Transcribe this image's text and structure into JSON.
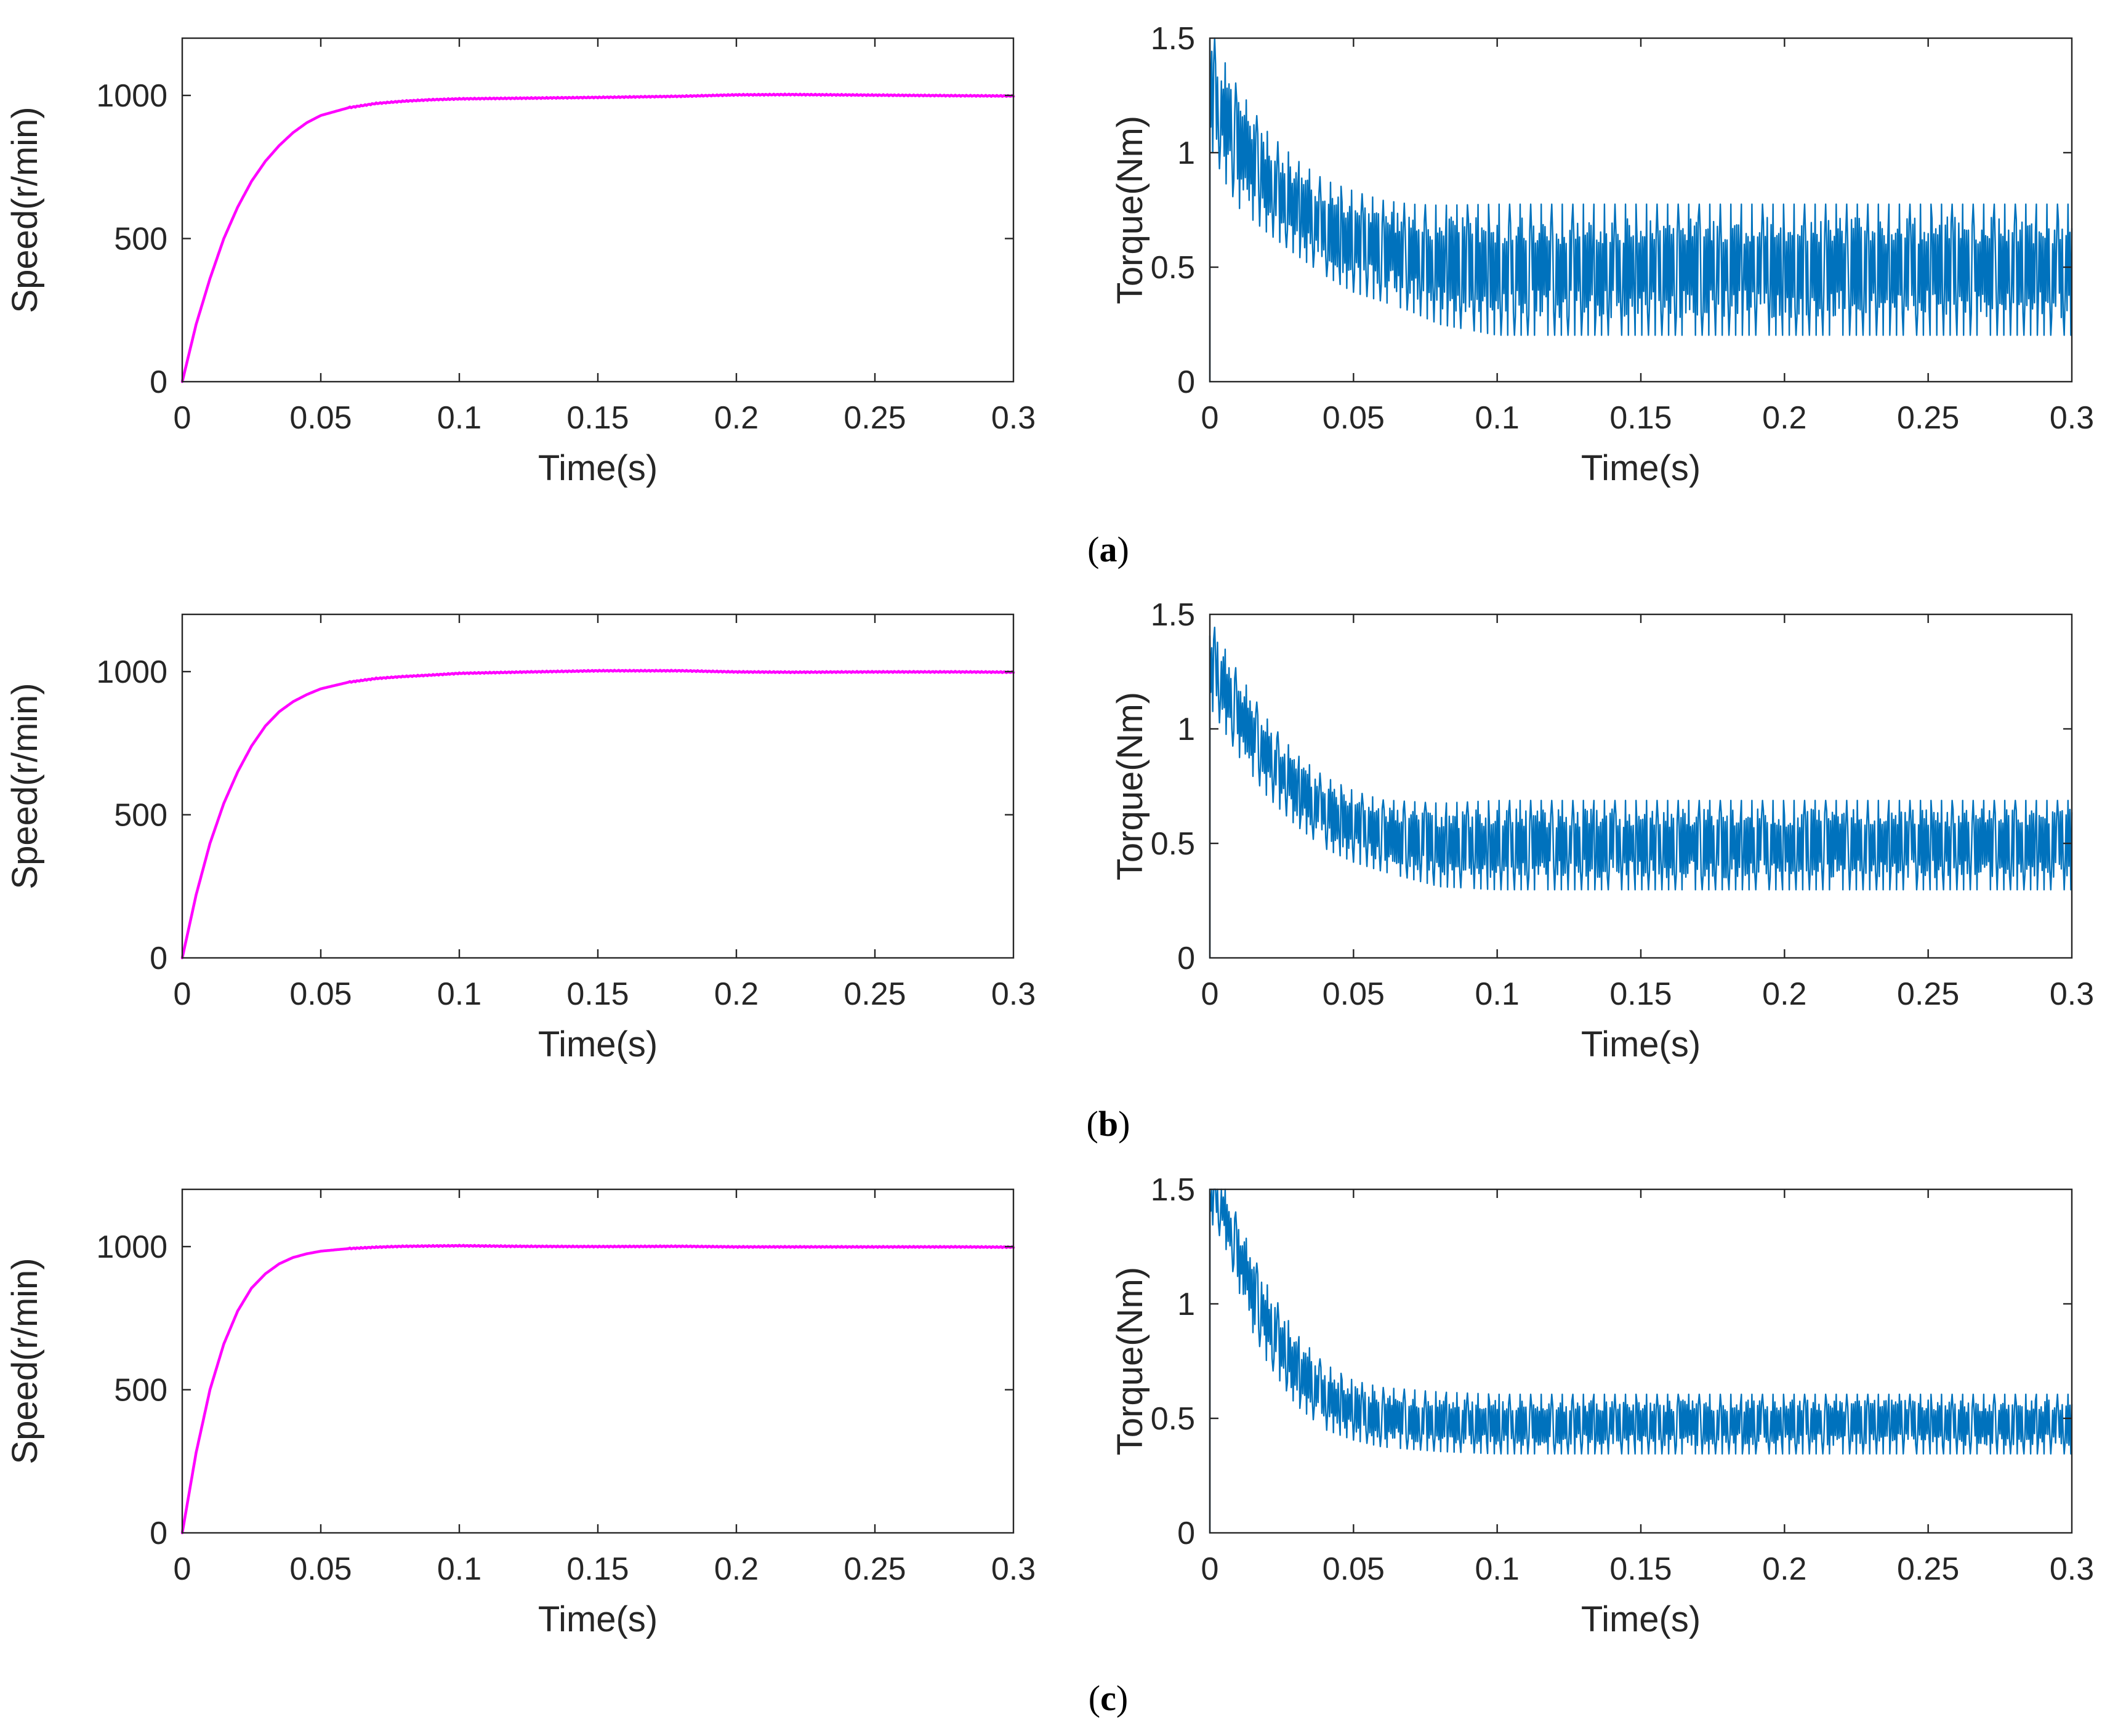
{
  "colors": {
    "speed": "#ff00ff",
    "torque": "#0072bd",
    "axis": "#262626"
  },
  "panels": [
    {
      "paren_open": "(",
      "letter": "a",
      "paren_close": ")"
    },
    {
      "paren_open": "(",
      "letter": "b",
      "paren_close": ")"
    },
    {
      "paren_open": "(",
      "letter": "c",
      "paren_close": ")"
    }
  ],
  "chart_data": [
    {
      "id": "a-speed",
      "panel": "a",
      "type": "line",
      "xlabel": "Time(s)",
      "ylabel": "Speed(r/min)",
      "xlim": [
        0,
        0.3
      ],
      "ylim": [
        0,
        1200
      ],
      "xticks": [
        0,
        0.05,
        0.1,
        0.15,
        0.2,
        0.25,
        0.3
      ],
      "xtick_labels": [
        "0",
        "0.05",
        "0.1",
        "0.15",
        "0.2",
        "0.25",
        "0.3"
      ],
      "yticks": [
        0,
        500,
        1000
      ],
      "ytick_labels": [
        "0",
        "500",
        "1000"
      ],
      "series": [
        {
          "name": "Speed",
          "color": "#ff00ff",
          "x": [
            0,
            0.005,
            0.01,
            0.015,
            0.02,
            0.025,
            0.03,
            0.035,
            0.04,
            0.045,
            0.05,
            0.06,
            0.07,
            0.08,
            0.09,
            0.1,
            0.12,
            0.15,
            0.18,
            0.2,
            0.22,
            0.25,
            0.28,
            0.3
          ],
          "y": [
            0,
            200,
            360,
            500,
            610,
            700,
            770,
            825,
            870,
            905,
            930,
            957,
            972,
            980,
            985,
            988,
            990,
            993,
            997,
            1002,
            1003,
            1001,
            999,
            998
          ]
        }
      ]
    },
    {
      "id": "a-torque",
      "panel": "a",
      "type": "line",
      "xlabel": "Time(s)",
      "ylabel": "Torque(Nm)",
      "xlim": [
        0,
        0.3
      ],
      "ylim": [
        0,
        1.5
      ],
      "xticks": [
        0,
        0.05,
        0.1,
        0.15,
        0.2,
        0.25,
        0.3
      ],
      "xtick_labels": [
        "0",
        "0.05",
        "0.1",
        "0.15",
        "0.2",
        "0.25",
        "0.3"
      ],
      "yticks": [
        0,
        0.5,
        1,
        1.5
      ],
      "ytick_labels": [
        "0",
        "0.5",
        "1",
        "1.5"
      ],
      "series": [
        {
          "name": "Torque",
          "color": "#0072bd",
          "x": [
            0,
            0.005,
            0.01,
            0.02,
            0.03,
            0.04,
            0.05,
            0.06,
            0.07,
            0.08,
            0.1,
            0.15,
            0.2,
            0.25,
            0.3
          ],
          "y": [
            1.3,
            1.15,
            1.03,
            0.88,
            0.77,
            0.68,
            0.62,
            0.58,
            0.55,
            0.52,
            0.5,
            0.5,
            0.5,
            0.5,
            0.5
          ],
          "ripple": [
            0.2,
            0.2,
            0.2,
            0.17,
            0.16,
            0.16,
            0.17,
            0.17,
            0.18,
            0.2,
            0.22,
            0.22,
            0.22,
            0.22,
            0.22
          ]
        }
      ]
    },
    {
      "id": "b-speed",
      "panel": "b",
      "type": "line",
      "xlabel": "Time(s)",
      "ylabel": "Speed(r/min)",
      "xlim": [
        0,
        0.3
      ],
      "ylim": [
        0,
        1200
      ],
      "xticks": [
        0,
        0.05,
        0.1,
        0.15,
        0.2,
        0.25,
        0.3
      ],
      "xtick_labels": [
        "0",
        "0.05",
        "0.1",
        "0.15",
        "0.2",
        "0.25",
        "0.3"
      ],
      "yticks": [
        0,
        500,
        1000
      ],
      "ytick_labels": [
        "0",
        "500",
        "1000"
      ],
      "series": [
        {
          "name": "Speed",
          "color": "#ff00ff",
          "x": [
            0,
            0.005,
            0.01,
            0.015,
            0.02,
            0.025,
            0.03,
            0.035,
            0.04,
            0.045,
            0.05,
            0.06,
            0.07,
            0.08,
            0.09,
            0.1,
            0.12,
            0.15,
            0.18,
            0.2,
            0.22,
            0.25,
            0.28,
            0.3
          ],
          "y": [
            0,
            220,
            400,
            540,
            650,
            740,
            810,
            860,
            895,
            920,
            940,
            963,
            976,
            983,
            988,
            994,
            998,
            1003,
            1003,
            999,
            998,
            999,
            999,
            998
          ]
        }
      ]
    },
    {
      "id": "b-torque",
      "panel": "b",
      "type": "line",
      "xlabel": "Time(s)",
      "ylabel": "Torque(Nm)",
      "xlim": [
        0,
        0.3
      ],
      "ylim": [
        0,
        1.5
      ],
      "xticks": [
        0,
        0.05,
        0.1,
        0.15,
        0.2,
        0.25,
        0.3
      ],
      "xtick_labels": [
        "0",
        "0.05",
        "0.1",
        "0.15",
        "0.2",
        "0.25",
        "0.3"
      ],
      "yticks": [
        0,
        0.5,
        1,
        1.5
      ],
      "ytick_labels": [
        "0",
        "0.5",
        "1",
        "1.5"
      ],
      "series": [
        {
          "name": "Torque",
          "color": "#0072bd",
          "x": [
            0,
            0.005,
            0.01,
            0.02,
            0.03,
            0.04,
            0.05,
            0.06,
            0.07,
            0.08,
            0.1,
            0.15,
            0.2,
            0.25,
            0.3
          ],
          "y": [
            1.3,
            1.18,
            1.07,
            0.88,
            0.74,
            0.64,
            0.58,
            0.54,
            0.52,
            0.5,
            0.5,
            0.5,
            0.5,
            0.5,
            0.5
          ],
          "ripple": [
            0.15,
            0.14,
            0.14,
            0.13,
            0.12,
            0.12,
            0.12,
            0.12,
            0.13,
            0.14,
            0.15,
            0.15,
            0.15,
            0.15,
            0.15
          ]
        }
      ]
    },
    {
      "id": "c-speed",
      "panel": "c",
      "type": "line",
      "xlabel": "Time(s)",
      "ylabel": "Speed(r/min)",
      "xlim": [
        0,
        0.3
      ],
      "ylim": [
        0,
        1200
      ],
      "xticks": [
        0,
        0.05,
        0.1,
        0.15,
        0.2,
        0.25,
        0.3
      ],
      "xtick_labels": [
        "0",
        "0.05",
        "0.1",
        "0.15",
        "0.2",
        "0.25",
        "0.3"
      ],
      "yticks": [
        0,
        500,
        1000
      ],
      "ytick_labels": [
        "0",
        "500",
        "1000"
      ],
      "series": [
        {
          "name": "Speed",
          "color": "#ff00ff",
          "x": [
            0,
            0.005,
            0.01,
            0.015,
            0.02,
            0.025,
            0.03,
            0.035,
            0.04,
            0.045,
            0.05,
            0.06,
            0.07,
            0.08,
            0.09,
            0.1,
            0.12,
            0.15,
            0.18,
            0.2,
            0.22,
            0.25,
            0.28,
            0.3
          ],
          "y": [
            0,
            280,
            500,
            660,
            775,
            855,
            905,
            940,
            962,
            975,
            984,
            993,
            998,
            1001,
            1002,
            1003,
            1001,
            1000,
            1001,
            999,
            999,
            999,
            999,
            998
          ]
        }
      ]
    },
    {
      "id": "c-torque",
      "panel": "c",
      "type": "line",
      "xlabel": "Time(s)",
      "ylabel": "Torque(Nm)",
      "xlim": [
        0,
        0.3
      ],
      "ylim": [
        0,
        1.5
      ],
      "xticks": [
        0,
        0.05,
        0.1,
        0.15,
        0.2,
        0.25,
        0.3
      ],
      "xtick_labels": [
        "0",
        "0.05",
        "0.1",
        "0.15",
        "0.2",
        "0.25",
        "0.3"
      ],
      "yticks": [
        0,
        0.5,
        1,
        1.5
      ],
      "ytick_labels": [
        "0",
        "0.5",
        "1",
        "1.5"
      ],
      "series": [
        {
          "name": "Torque",
          "color": "#0072bd",
          "x": [
            0,
            0.005,
            0.01,
            0.015,
            0.02,
            0.03,
            0.04,
            0.05,
            0.06,
            0.08,
            0.1,
            0.15,
            0.2,
            0.25,
            0.3
          ],
          "y": [
            1.5,
            1.4,
            1.22,
            1.05,
            0.92,
            0.72,
            0.6,
            0.54,
            0.51,
            0.49,
            0.48,
            0.48,
            0.48,
            0.48,
            0.48
          ],
          "ripple": [
            0.1,
            0.1,
            0.12,
            0.13,
            0.13,
            0.12,
            0.11,
            0.1,
            0.1,
            0.1,
            0.1,
            0.1,
            0.1,
            0.1,
            0.1
          ]
        }
      ]
    }
  ]
}
